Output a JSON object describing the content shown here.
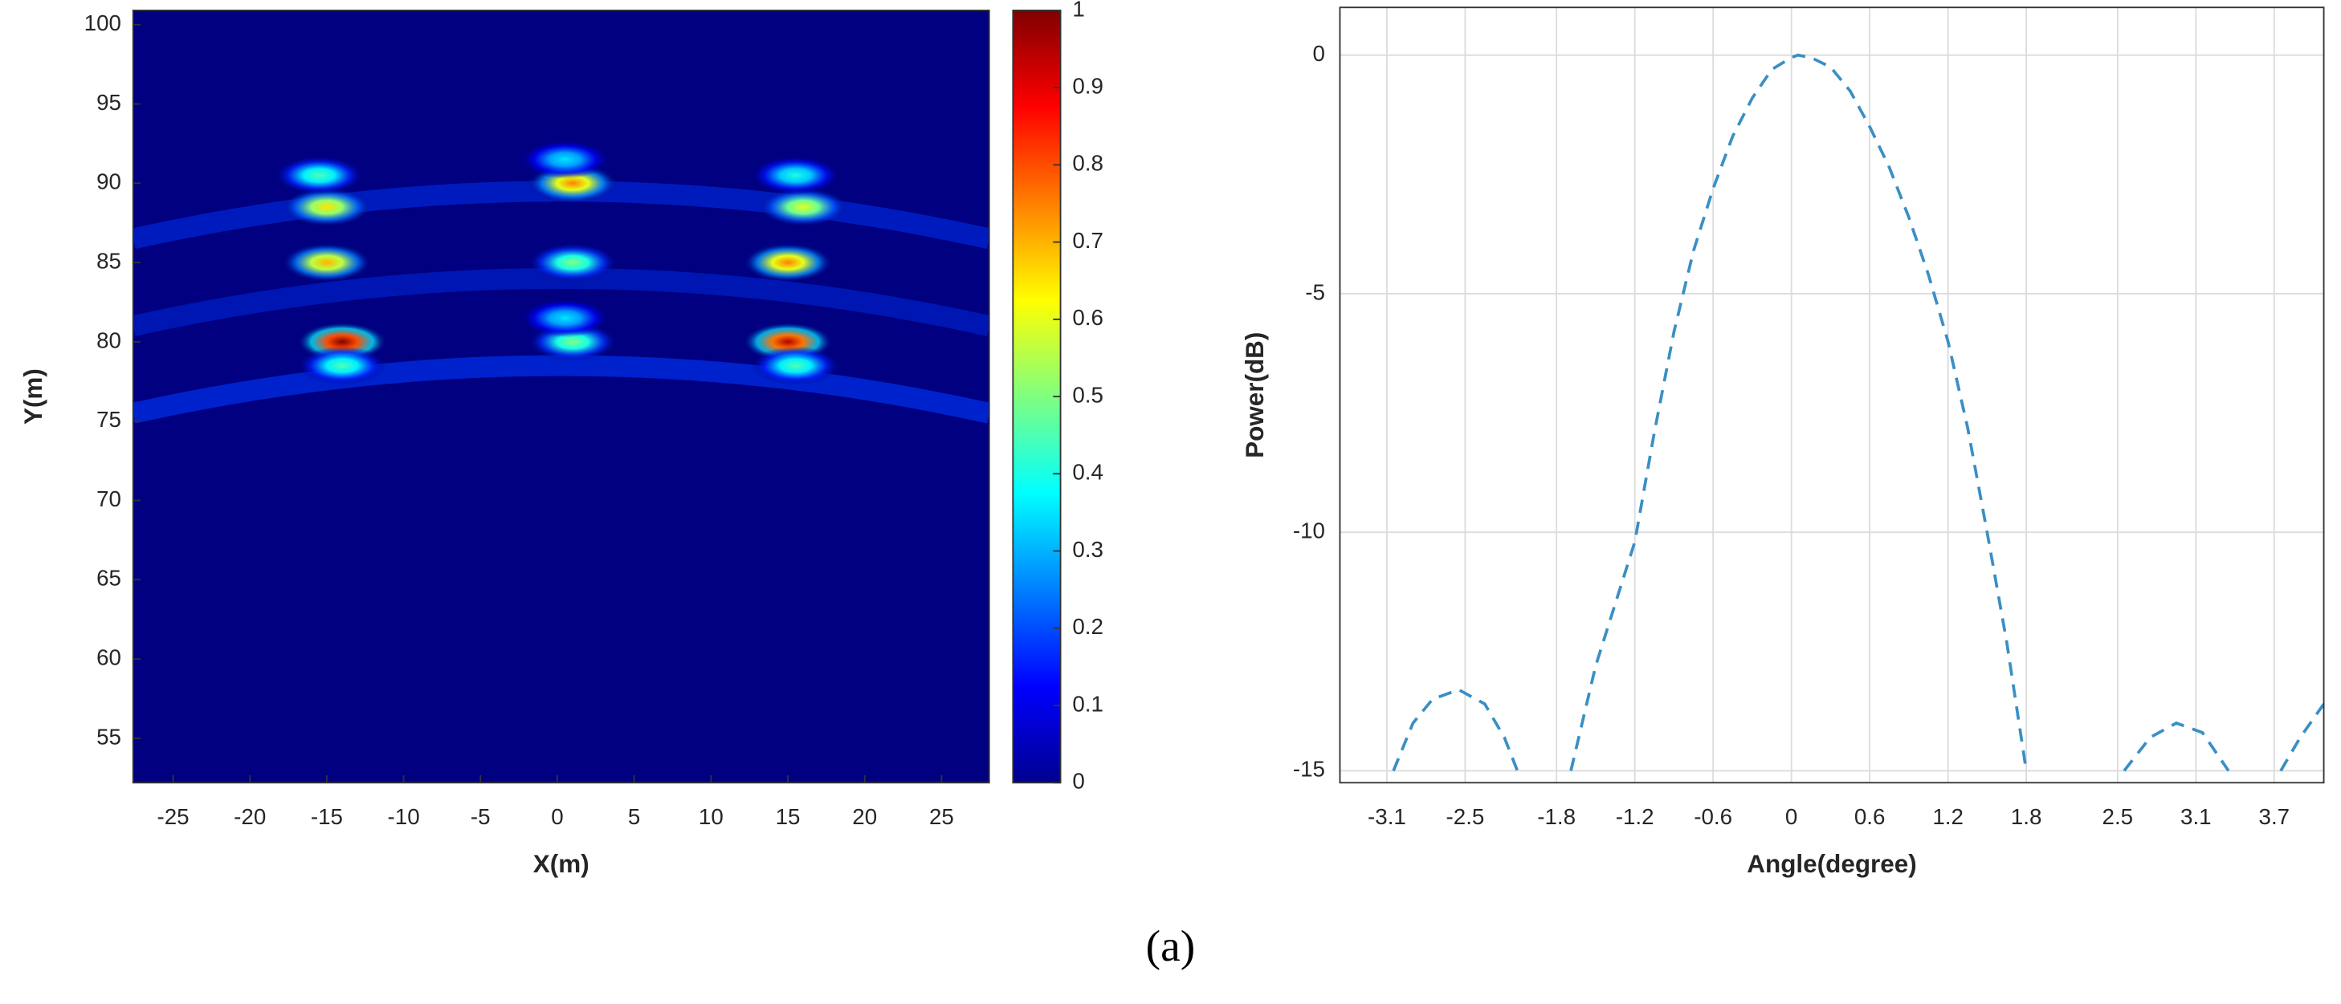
{
  "chart_data": [
    {
      "type": "heatmap",
      "x_label": "X(m)",
      "y_label": "Y(m)",
      "xlim": [
        -27.6,
        28.1
      ],
      "ylim": [
        52.2,
        100.9
      ],
      "xticks": [
        -25,
        -20,
        -15,
        -10,
        -5,
        0,
        5,
        10,
        15,
        20,
        25
      ],
      "yticks": [
        55,
        60,
        65,
        70,
        75,
        80,
        85,
        90,
        95,
        100
      ],
      "colorbar_lim": [
        0,
        1
      ],
      "colorbar_ticks": [
        0,
        0.1,
        0.2,
        0.3,
        0.4,
        0.5,
        0.6,
        0.7,
        0.8,
        0.9,
        1
      ],
      "colormap": "jet",
      "x": [
        -15,
        -15.5,
        -15,
        -14,
        -14,
        1,
        0.5,
        1,
        1,
        0.5,
        16,
        15.5,
        15,
        15,
        15.5
      ],
      "y": [
        88.5,
        90.5,
        85,
        80,
        78.5,
        90,
        91.5,
        85,
        80,
        81.5,
        88.5,
        90.5,
        85,
        80,
        78.5
      ],
      "values": [
        0.65,
        0.45,
        0.7,
        1.0,
        0.45,
        0.75,
        0.35,
        0.5,
        0.5,
        0.35,
        0.6,
        0.4,
        0.75,
        0.95,
        0.45
      ]
    },
    {
      "type": "line",
      "x_label": "Angle(degree)",
      "y_label": "Power(dB)",
      "xlim": [
        -3.46,
        4.08
      ],
      "ylim": [
        -15.25,
        1
      ],
      "xticks": [
        -3.1,
        -2.5,
        -1.8,
        -1.2,
        -0.6,
        0,
        0.6,
        1.2,
        1.8,
        2.5,
        3.1,
        3.7
      ],
      "yticks": [
        0,
        -5,
        -10,
        -15
      ],
      "grid": true,
      "color": "#3a8fc4",
      "line_style": "dashed",
      "x": [
        -3.05,
        -2.9,
        -2.75,
        -2.55,
        -2.35,
        -2.2,
        -2.1,
        -1.9,
        -1.69,
        -1.5,
        -1.35,
        -1.2,
        -1.05,
        -0.9,
        -0.75,
        -0.6,
        -0.45,
        -0.3,
        -0.15,
        0,
        0.05,
        0.15,
        0.3,
        0.45,
        0.6,
        0.75,
        0.9,
        1.05,
        1.2,
        1.35,
        1.5,
        1.65,
        1.8,
        2.2,
        2.55,
        2.75,
        2.95,
        3.15,
        3.35,
        3.55,
        3.75,
        3.9,
        4.08
      ],
      "values": [
        -15.0,
        -14.0,
        -13.5,
        -13.3,
        -13.6,
        -14.3,
        -15.0,
        null,
        -15.0,
        -12.8,
        -11.5,
        -10.2,
        -7.9,
        -5.8,
        -4.1,
        -2.8,
        -1.7,
        -0.9,
        -0.3,
        -0.05,
        0,
        -0.05,
        -0.25,
        -0.75,
        -1.5,
        -2.35,
        -3.4,
        -4.6,
        -6.0,
        -7.8,
        -10.0,
        -12.3,
        -15.0,
        null,
        -15.0,
        -14.3,
        -14.0,
        -14.2,
        -15.0,
        null,
        -15.0,
        -14.3,
        -13.6
      ]
    }
  ],
  "caption": "(a)"
}
